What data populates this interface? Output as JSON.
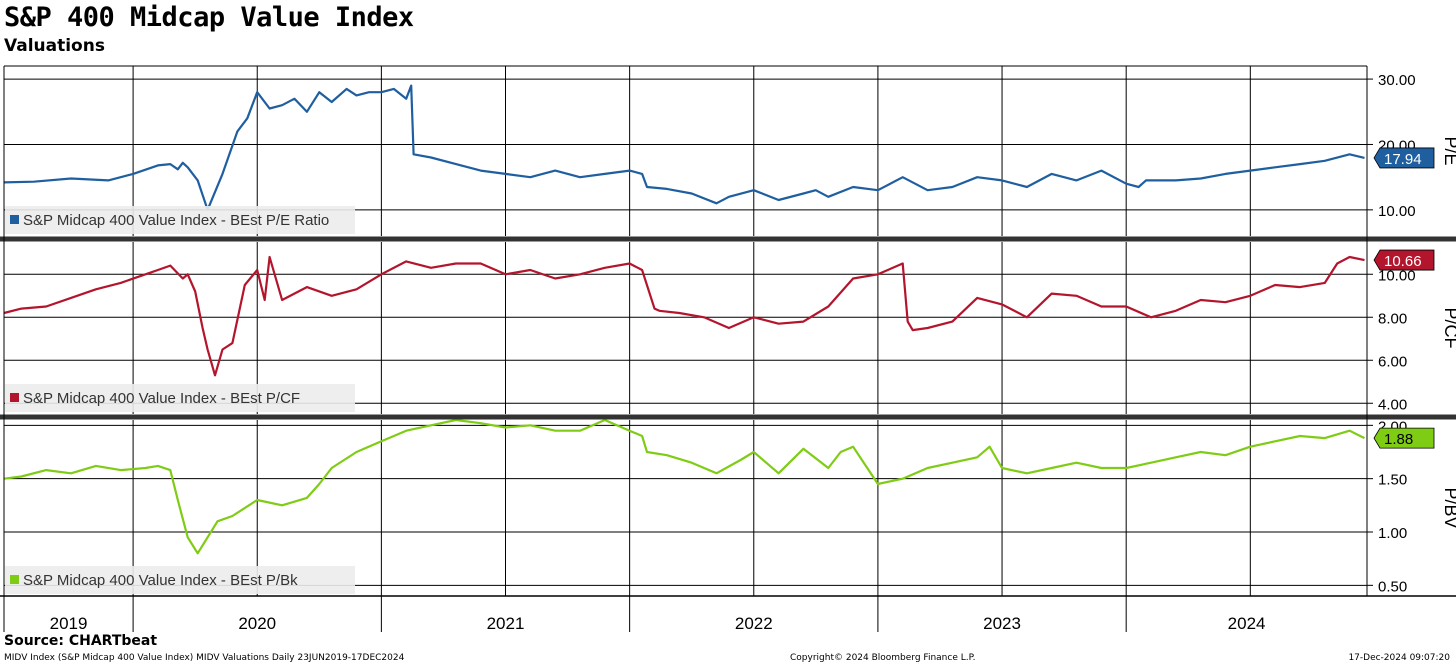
{
  "header": {
    "title": "S&P 400 Midcap Value Index",
    "subtitle": "Valuations"
  },
  "footer": {
    "source": "Source: CHARTbeat",
    "description": "MIDV Index (S&P Midcap 400 Value Index) MIDV Valuations  Daily 23JUN2019-17DEC2024",
    "copyright": "Copyright© 2024 Bloomberg Finance L.P.",
    "timestamp": "17-Dec-2024 09:07:20"
  },
  "chart_data": [
    {
      "type": "line",
      "panel": "pe",
      "ylabel": "P/E",
      "ylim": [
        6,
        32
      ],
      "yticks": [
        10,
        20,
        30
      ],
      "ytick_labels": [
        "10.00",
        "20.00",
        "30.00"
      ],
      "legend": "S&P Midcap 400 Value Index - BEst P/E Ratio",
      "last_value_label": "17.94",
      "last_value": 17.94,
      "color": "#1f5fa0",
      "x": [
        2019.48,
        2019.6,
        2019.75,
        2019.9,
        2020.0,
        2020.1,
        2020.15,
        2020.18,
        2020.2,
        2020.22,
        2020.26,
        2020.3,
        2020.36,
        2020.42,
        2020.46,
        2020.5,
        2020.55,
        2020.6,
        2020.65,
        2020.7,
        2020.75,
        2020.8,
        2020.86,
        2020.9,
        2020.95,
        2021.0,
        2021.05,
        2021.1,
        2021.12,
        2021.13,
        2021.2,
        2021.3,
        2021.4,
        2021.5,
        2021.6,
        2021.7,
        2021.8,
        2021.9,
        2022.0,
        2022.05,
        2022.07,
        2022.15,
        2022.25,
        2022.35,
        2022.4,
        2022.5,
        2022.6,
        2022.7,
        2022.75,
        2022.8,
        2022.9,
        2023.0,
        2023.1,
        2023.2,
        2023.3,
        2023.4,
        2023.5,
        2023.6,
        2023.7,
        2023.8,
        2023.9,
        2024.0,
        2024.05,
        2024.08,
        2024.2,
        2024.3,
        2024.4,
        2024.5,
        2024.6,
        2024.7,
        2024.8,
        2024.9,
        2024.96
      ],
      "values": [
        14.2,
        14.3,
        14.8,
        14.5,
        15.5,
        16.8,
        17.0,
        16.2,
        17.2,
        16.5,
        14.5,
        10.0,
        15.5,
        22.0,
        24.0,
        28.0,
        25.5,
        26.0,
        27.0,
        25.0,
        28.0,
        26.5,
        28.5,
        27.5,
        28.0,
        28.0,
        28.5,
        27.0,
        29.0,
        18.5,
        18.0,
        17.0,
        16.0,
        15.5,
        15.0,
        16.0,
        15.0,
        15.5,
        16.0,
        15.5,
        13.5,
        13.2,
        12.5,
        11.0,
        12.0,
        13.0,
        11.5,
        12.5,
        13.0,
        12.0,
        13.5,
        13.0,
        15.0,
        13.0,
        13.5,
        15.0,
        14.5,
        13.5,
        15.5,
        14.5,
        16.0,
        14.0,
        13.5,
        14.5,
        14.5,
        14.8,
        15.5,
        16.0,
        16.5,
        17.0,
        17.5,
        18.5,
        17.94
      ]
    },
    {
      "type": "line",
      "panel": "pcf",
      "ylabel": "P/CF",
      "ylim": [
        3.5,
        11.5
      ],
      "yticks": [
        4,
        6,
        8,
        10
      ],
      "ytick_labels": [
        "4.00",
        "6.00",
        "8.00",
        "10.00"
      ],
      "legend": "S&P Midcap 400 Value Index - BEst P/CF",
      "last_value_label": "10.66",
      "last_value": 10.66,
      "color": "#b3152d",
      "x": [
        2019.48,
        2019.55,
        2019.65,
        2019.75,
        2019.85,
        2019.95,
        2020.05,
        2020.1,
        2020.15,
        2020.2,
        2020.22,
        2020.25,
        2020.28,
        2020.3,
        2020.33,
        2020.36,
        2020.4,
        2020.45,
        2020.5,
        2020.53,
        2020.55,
        2020.6,
        2020.7,
        2020.8,
        2020.9,
        2021.0,
        2021.1,
        2021.2,
        2021.3,
        2021.4,
        2021.5,
        2021.6,
        2021.7,
        2021.8,
        2021.9,
        2022.0,
        2022.05,
        2022.1,
        2022.12,
        2022.2,
        2022.3,
        2022.4,
        2022.5,
        2022.6,
        2022.7,
        2022.8,
        2022.9,
        2023.0,
        2023.1,
        2023.12,
        2023.14,
        2023.2,
        2023.3,
        2023.4,
        2023.5,
        2023.6,
        2023.7,
        2023.8,
        2023.9,
        2024.0,
        2024.1,
        2024.2,
        2024.3,
        2024.4,
        2024.5,
        2024.6,
        2024.7,
        2024.8,
        2024.85,
        2024.9,
        2024.96
      ],
      "values": [
        8.2,
        8.4,
        8.5,
        8.9,
        9.3,
        9.6,
        10.0,
        10.2,
        10.4,
        9.8,
        10.0,
        9.2,
        7.5,
        6.5,
        5.3,
        6.5,
        6.8,
        9.5,
        10.2,
        8.8,
        10.8,
        8.8,
        9.4,
        9.0,
        9.3,
        10.0,
        10.6,
        10.3,
        10.5,
        10.5,
        10.0,
        10.2,
        9.8,
        10.0,
        10.3,
        10.5,
        10.2,
        8.4,
        8.3,
        8.2,
        8.0,
        7.5,
        8.0,
        7.7,
        7.8,
        8.5,
        9.8,
        10.0,
        10.5,
        7.8,
        7.4,
        7.5,
        7.8,
        8.9,
        8.6,
        8.0,
        9.1,
        9.0,
        8.5,
        8.5,
        8.0,
        8.3,
        8.8,
        8.7,
        9.0,
        9.5,
        9.4,
        9.6,
        10.5,
        10.8,
        10.66
      ]
    },
    {
      "type": "line",
      "panel": "pbv",
      "ylabel": "P/BV",
      "ylim": [
        0.4,
        2.05
      ],
      "yticks": [
        0.5,
        1.0,
        1.5,
        2.0
      ],
      "ytick_labels": [
        "0.50",
        "1.00",
        "1.50",
        "2.00"
      ],
      "legend": "S&P Midcap 400 Value Index - BEst P/Bk",
      "last_value_label": "1.88",
      "last_value": 1.88,
      "color": "#7fcc14",
      "x": [
        2019.48,
        2019.55,
        2019.65,
        2019.75,
        2019.85,
        2019.95,
        2020.05,
        2020.1,
        2020.15,
        2020.18,
        2020.22,
        2020.26,
        2020.3,
        2020.34,
        2020.4,
        2020.5,
        2020.6,
        2020.7,
        2020.75,
        2020.8,
        2020.9,
        2021.0,
        2021.1,
        2021.2,
        2021.3,
        2021.4,
        2021.5,
        2021.6,
        2021.7,
        2021.8,
        2021.9,
        2022.0,
        2022.05,
        2022.07,
        2022.15,
        2022.25,
        2022.35,
        2022.45,
        2022.5,
        2022.6,
        2022.7,
        2022.8,
        2022.85,
        2022.9,
        2023.0,
        2023.1,
        2023.2,
        2023.3,
        2023.4,
        2023.45,
        2023.5,
        2023.6,
        2023.7,
        2023.8,
        2023.9,
        2024.0,
        2024.1,
        2024.2,
        2024.3,
        2024.4,
        2024.5,
        2024.6,
        2024.7,
        2024.8,
        2024.9,
        2024.96
      ],
      "values": [
        1.5,
        1.52,
        1.58,
        1.55,
        1.62,
        1.58,
        1.6,
        1.62,
        1.58,
        1.3,
        0.95,
        0.8,
        0.95,
        1.1,
        1.15,
        1.3,
        1.25,
        1.32,
        1.45,
        1.6,
        1.75,
        1.85,
        1.95,
        2.0,
        2.05,
        2.02,
        1.98,
        2.0,
        1.95,
        1.95,
        2.05,
        1.95,
        1.9,
        1.75,
        1.72,
        1.65,
        1.55,
        1.68,
        1.75,
        1.55,
        1.78,
        1.6,
        1.75,
        1.8,
        1.45,
        1.5,
        1.6,
        1.65,
        1.7,
        1.8,
        1.6,
        1.55,
        1.6,
        1.65,
        1.6,
        1.6,
        1.65,
        1.7,
        1.75,
        1.72,
        1.8,
        1.85,
        1.9,
        1.88,
        1.95,
        1.88
      ]
    }
  ],
  "x_axis": {
    "range": [
      2019.48,
      2024.97
    ],
    "year_labels": [
      "2019",
      "2020",
      "2021",
      "2022",
      "2023",
      "2024"
    ]
  }
}
